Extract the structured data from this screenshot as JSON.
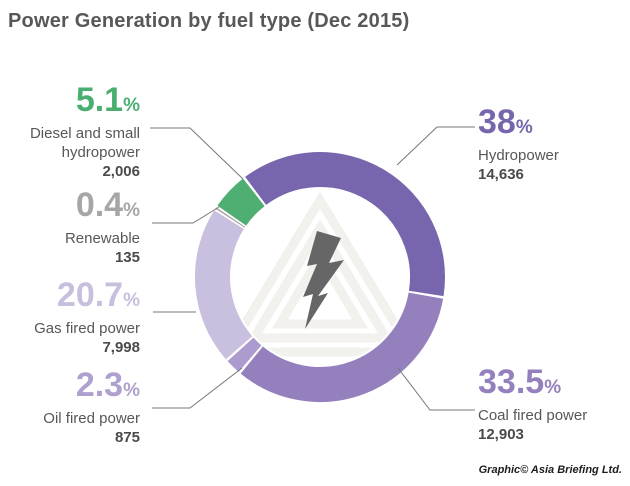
{
  "title": "Power Generation by fuel type (Dec 2015)",
  "credit": "Graphic© Asia Briefing Ltd.",
  "percent_sign": "%",
  "center_icon": "lightning-bolt",
  "chart_data": {
    "type": "pie",
    "subtype": "donut",
    "title": "Power Generation by fuel type (Dec 2015)",
    "start_angle_deg": -37.4,
    "direction": "clockwise",
    "legend_position": "callouts",
    "segments": [
      {
        "label": "Hydropower",
        "pct": 38,
        "value": 14636,
        "value_display": "14,636",
        "color": "#7766AD"
      },
      {
        "label": "Coal fired power",
        "pct": 33.5,
        "value": 12903,
        "value_display": "12,903",
        "color": "#9480BC"
      },
      {
        "label": "Oil fired power",
        "pct": 2.3,
        "value": 875,
        "value_display": "875",
        "color": "#AC9BCE"
      },
      {
        "label": "Gas fired power",
        "pct": 20.7,
        "value": 7998,
        "value_display": "7,998",
        "color": "#C9BFDE"
      },
      {
        "label": "Renewable",
        "pct": 0.4,
        "value": 135,
        "value_display": "135",
        "color": "#A5A2A2"
      },
      {
        "label": "Diesel and small hydropower",
        "pct": 5.1,
        "value": 2006,
        "value_display": "2,006",
        "color": "#4FAE71"
      }
    ]
  },
  "callouts": {
    "diesel": {
      "pct": "5.1",
      "name": "Diesel and small hydropower",
      "value": "2,006",
      "color": "#4BAE71"
    },
    "renewable": {
      "pct": "0.4",
      "name": "Renewable",
      "value": "135",
      "color": "#A7A5A6"
    },
    "gas": {
      "pct": "20.7",
      "name": "Gas fired power",
      "value": "7,998",
      "color": "#C8BEDD"
    },
    "oil": {
      "pct": "2.3",
      "name": "Oil fired power",
      "value": "875",
      "color": "#AFA0CF"
    },
    "hydro": {
      "pct": "38",
      "name": "Hydropower",
      "value": "14,636",
      "color": "#7766AD"
    },
    "coal": {
      "pct": "33.5",
      "name": "Coal fired power",
      "value": "12,903",
      "color": "#9480BC"
    }
  }
}
